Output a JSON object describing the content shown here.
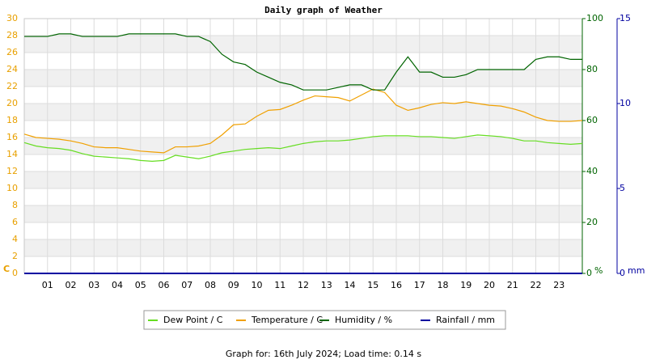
{
  "chart_data": {
    "type": "line",
    "title": "Daily graph of Weather",
    "x": [
      0,
      0.5,
      1,
      1.5,
      2,
      2.5,
      3,
      3.5,
      4,
      4.5,
      5,
      5.5,
      6,
      6.5,
      7,
      7.5,
      8,
      8.5,
      9,
      9.5,
      10,
      10.5,
      11,
      11.5,
      12,
      12.5,
      13,
      13.5,
      14,
      14.5,
      15,
      15.5,
      16,
      16.5,
      17,
      17.5,
      18,
      18.5,
      19,
      19.5,
      20,
      20.5,
      21,
      21.5,
      22,
      22.5,
      23,
      23.5,
      24
    ],
    "xlim": [
      0,
      24
    ],
    "xticks": [
      {
        "value": 1,
        "label": "01"
      },
      {
        "value": 2,
        "label": "02"
      },
      {
        "value": 3,
        "label": "03"
      },
      {
        "value": 4,
        "label": "04"
      },
      {
        "value": 5,
        "label": "05"
      },
      {
        "value": 6,
        "label": "06"
      },
      {
        "value": 7,
        "label": "07"
      },
      {
        "value": 8,
        "label": "08"
      },
      {
        "value": 9,
        "label": "09"
      },
      {
        "value": 10,
        "label": "10"
      },
      {
        "value": 11,
        "label": "11"
      },
      {
        "value": 12,
        "label": "12"
      },
      {
        "value": 13,
        "label": "13"
      },
      {
        "value": 14,
        "label": "14"
      },
      {
        "value": 15,
        "label": "15"
      },
      {
        "value": 16,
        "label": "16"
      },
      {
        "value": 17,
        "label": "17"
      },
      {
        "value": 18,
        "label": "18"
      },
      {
        "value": 19,
        "label": "19"
      },
      {
        "value": 20,
        "label": "20"
      },
      {
        "value": 21,
        "label": "21"
      },
      {
        "value": 22,
        "label": "22"
      },
      {
        "value": 23,
        "label": "23"
      }
    ],
    "ylabel": "C",
    "ylim": [
      0,
      30
    ],
    "yticks": [
      0,
      2,
      4,
      6,
      8,
      10,
      12,
      14,
      16,
      18,
      20,
      22,
      24,
      26,
      28,
      30
    ],
    "y2label": "%",
    "y2lim": [
      0,
      100
    ],
    "y2ticks": [
      0,
      20,
      40,
      60,
      80,
      100
    ],
    "y3label": "mm",
    "y3lim": [
      0,
      15
    ],
    "y3ticks": [
      0,
      5,
      10,
      15
    ],
    "grid": true,
    "series": [
      {
        "name": "Dew Point / C",
        "color": "#66dd22",
        "axis": "y",
        "values": [
          15.4,
          15.0,
          14.8,
          14.7,
          14.5,
          14.1,
          13.8,
          13.7,
          13.6,
          13.5,
          13.3,
          13.2,
          13.3,
          13.9,
          13.7,
          13.5,
          13.8,
          14.2,
          14.4,
          14.6,
          14.7,
          14.8,
          14.7,
          15.0,
          15.3,
          15.5,
          15.6,
          15.6,
          15.7,
          15.9,
          16.1,
          16.2,
          16.2,
          16.2,
          16.1,
          16.1,
          16.0,
          15.9,
          16.1,
          16.3,
          16.2,
          16.1,
          15.9,
          15.6,
          15.6,
          15.4,
          15.3,
          15.2,
          15.3
        ]
      },
      {
        "name": "Temperature / C",
        "color": "#f0a000",
        "axis": "y",
        "values": [
          16.4,
          16.0,
          15.9,
          15.8,
          15.6,
          15.3,
          14.9,
          14.8,
          14.8,
          14.6,
          14.4,
          14.3,
          14.2,
          14.9,
          14.9,
          15.0,
          15.3,
          16.3,
          17.5,
          17.6,
          18.5,
          19.2,
          19.3,
          19.8,
          20.4,
          20.9,
          20.8,
          20.7,
          20.3,
          21.0,
          21.7,
          21.3,
          19.8,
          19.2,
          19.5,
          19.9,
          20.1,
          20.0,
          20.2,
          20.0,
          19.8,
          19.7,
          19.4,
          19.0,
          18.4,
          18.0,
          17.9,
          17.9,
          18.0
        ]
      },
      {
        "name": "Humidity / %",
        "color": "#006400",
        "axis": "y2",
        "values": [
          93,
          93,
          93,
          94,
          94,
          93,
          93,
          93,
          93,
          94,
          94,
          94,
          94,
          94,
          93,
          93,
          91,
          86,
          83,
          82,
          79,
          77,
          75,
          74,
          72,
          72,
          72,
          73,
          74,
          74,
          72,
          72,
          79,
          85,
          79,
          79,
          77,
          77,
          78,
          80,
          80,
          80,
          80,
          80,
          84,
          85,
          85,
          84,
          84
        ]
      },
      {
        "name": "Rainfall / mm",
        "color": "#0000a0",
        "axis": "y3",
        "values": [
          0,
          0,
          0,
          0,
          0,
          0,
          0,
          0,
          0,
          0,
          0,
          0,
          0,
          0,
          0,
          0,
          0,
          0,
          0,
          0,
          0,
          0,
          0,
          0,
          0,
          0,
          0,
          0,
          0,
          0,
          0,
          0,
          0,
          0,
          0,
          0,
          0,
          0,
          0,
          0,
          0,
          0,
          0,
          0,
          0,
          0,
          0,
          0,
          0
        ]
      }
    ],
    "footer": "Graph for: 16th July 2024; Load time: 0.14 s"
  }
}
